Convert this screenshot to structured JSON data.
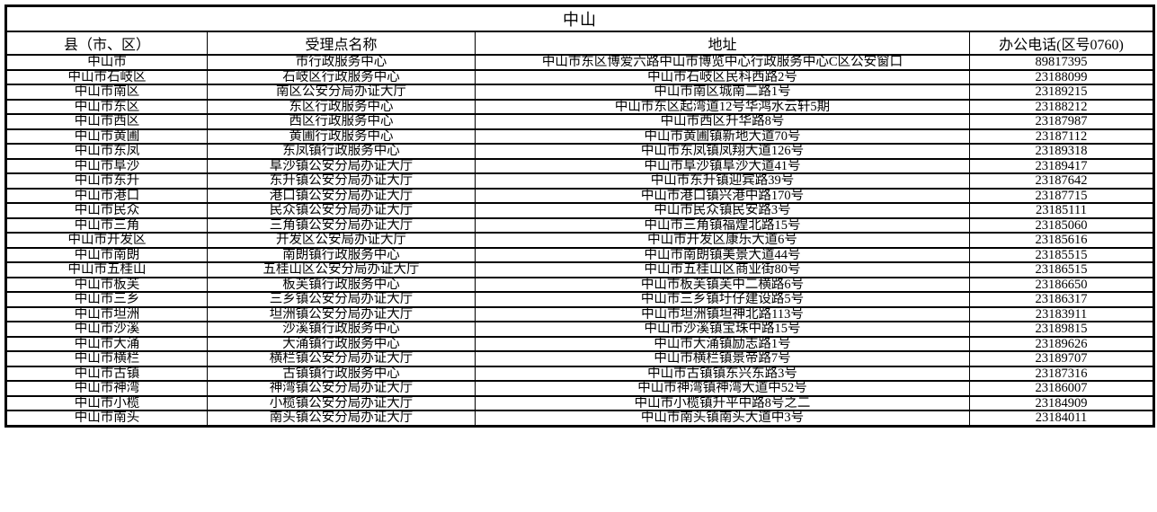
{
  "table": {
    "title": "中山",
    "columns": [
      "县（市、区）",
      "受理点名称",
      "地址",
      "办公电话(区号0760)"
    ],
    "rows": [
      [
        "中山市",
        "市行政服务中心",
        "中山市东区博爱六路中山市博览中心行政服务中心C区公安窗口",
        "89817395"
      ],
      [
        "中山市石岐区",
        "石岐区行政服务中心",
        "中山市石岐区民科西路2号",
        "23188099"
      ],
      [
        "中山市南区",
        "南区公安分局办证大厅",
        "中山市南区城南二路1号",
        "23189215"
      ],
      [
        "中山市东区",
        "东区行政服务中心",
        "中山市东区起湾道12号华鸿水云轩5期",
        "23188212"
      ],
      [
        "中山市西区",
        "西区行政服务中心",
        "中山市西区升华路8号",
        "23187987"
      ],
      [
        "中山市黄圃",
        "黄圃行政服务中心",
        "中山市黄圃镇新地大道70号",
        "23187112"
      ],
      [
        "中山市东凤",
        "东凤镇行政服务中心",
        "中山市东凤镇凤翔大道126号",
        "23189318"
      ],
      [
        "中山市阜沙",
        "阜沙镇公安分局办证大厅",
        "中山市阜沙镇阜沙大道41号",
        "23189417"
      ],
      [
        "中山市东升",
        "东升镇公安分局办证大厅",
        "中山市东升镇迎宾路39号",
        "23187642"
      ],
      [
        "中山市港口",
        "港口镇公安分局办证大厅",
        "中山市港口镇兴港中路170号",
        "23187715"
      ],
      [
        "中山市民众",
        "民众镇公安分局办证大厅",
        "中山市民众镇民安路3号",
        "23185111"
      ],
      [
        "中山市三角",
        "三角镇公安分局办证大厅",
        "中山市三角镇福煌北路15号",
        "23185060"
      ],
      [
        "中山市开发区",
        "开发区公安局办证大厅",
        "中山市开发区康乐大道6号",
        "23185616"
      ],
      [
        "中山市南朗",
        "南朗镇行政服务中心",
        "中山市南朗镇美景大道44号",
        "23185515"
      ],
      [
        "中山市五桂山",
        "五桂山区公安分局办证大厅",
        "中山市五桂山区商业街80号",
        "23186515"
      ],
      [
        "中山市板芙",
        "板芙镇行政服务中心",
        "中山市板芙镇芙中二横路6号",
        "23186650"
      ],
      [
        "中山市三乡",
        "三乡镇公安分局办证大厅",
        "中山市三乡镇圩仔建设路5号",
        "23186317"
      ],
      [
        "中山市坦洲",
        "坦洲镇公安分局办证大厅",
        "中山市坦洲镇坦神北路113号",
        "23183911"
      ],
      [
        "中山市沙溪",
        "沙溪镇行政服务中心",
        "中山市沙溪镇宝珠中路15号",
        "23189815"
      ],
      [
        "中山市大涌",
        "大涌镇行政服务中心",
        "中山市大涌镇励志路1号",
        "23189626"
      ],
      [
        "中山市横栏",
        "横栏镇公安分局办证大厅",
        "中山市横栏镇景帝路7号",
        "23189707"
      ],
      [
        "中山市古镇",
        "古镇镇行政服务中心",
        "中山市古镇镇东兴东路3号",
        "23187316"
      ],
      [
        "中山市神湾",
        "神湾镇公安分局办证大厅",
        "中山市神湾镇神湾大道中52号",
        "23186007"
      ],
      [
        "中山市小榄",
        "小榄镇公安分局办证大厅",
        "中山市小榄镇升平中路8号之二",
        "23184909"
      ],
      [
        "中山市南头",
        "南头镇公安分局办证大厅",
        "中山市南头镇南头大道中3号",
        "23184011"
      ]
    ]
  },
  "colors": {
    "border": "#000000",
    "background": "#ffffff",
    "text": "#000000"
  }
}
